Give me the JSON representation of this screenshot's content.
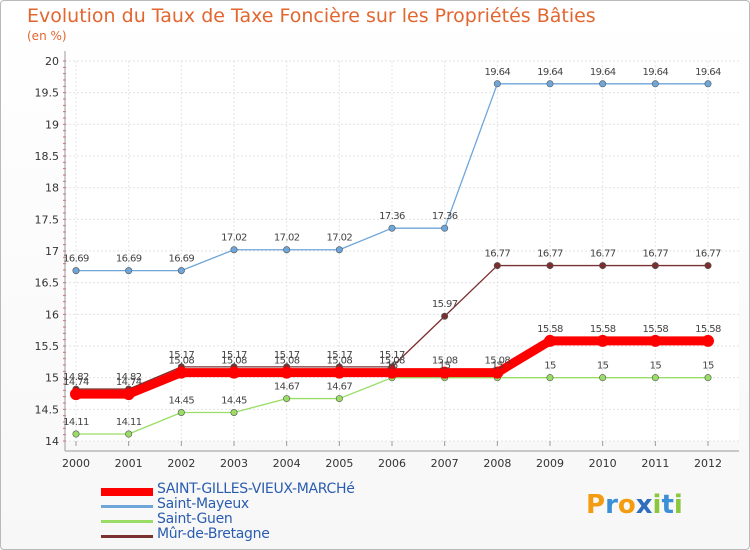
{
  "title": "Evolution du Taux de Taxe Foncière sur les Propriétés Bâties",
  "subtitle": "(en %)",
  "chart_data": {
    "type": "line",
    "x": [
      "2000",
      "2001",
      "2002",
      "2003",
      "2004",
      "2005",
      "2006",
      "2007",
      "2008",
      "2009",
      "2010",
      "2011",
      "2012"
    ],
    "ylim": [
      14,
      20
    ],
    "yticks": [
      "14",
      "14.5",
      "15",
      "15.5",
      "16",
      "16.5",
      "17",
      "17.5",
      "18",
      "18.5",
      "19",
      "19.5",
      "20"
    ],
    "grid": true,
    "legend_position": "bottom",
    "series": [
      {
        "name": "SAINT-GILLES-VIEUX-MARCHé",
        "color": "#ff0000",
        "values": [
          14.74,
          14.74,
          15.08,
          15.08,
          15.08,
          15.08,
          15.08,
          15.08,
          15.08,
          15.58,
          15.58,
          15.58,
          15.58
        ],
        "labels": [
          "14.74",
          "14.74",
          "15.08",
          "15.08",
          "15.08",
          "15.08",
          "15.08",
          "15.08",
          "15.08",
          "15.58",
          "15.58",
          "15.58",
          "15.58"
        ]
      },
      {
        "name": "Saint-Mayeux",
        "color": "#6ea6d9",
        "values": [
          16.69,
          16.69,
          16.69,
          17.02,
          17.02,
          17.02,
          17.36,
          17.36,
          19.64,
          19.64,
          19.64,
          19.64,
          19.64
        ],
        "labels": [
          "16.69",
          "16.69",
          "16.69",
          "17.02",
          "17.02",
          "17.02",
          "17.36",
          "17.36",
          "19.64",
          "19.64",
          "19.64",
          "19.64",
          "19.64"
        ]
      },
      {
        "name": "Saint-Guen",
        "color": "#99dd66",
        "values": [
          14.11,
          14.11,
          14.45,
          14.45,
          14.67,
          14.67,
          15,
          15,
          15,
          15,
          15,
          15,
          15
        ],
        "labels": [
          "14.11",
          "14.11",
          "14.45",
          "14.45",
          "14.67",
          "14.67",
          "15",
          "15",
          "15",
          "15",
          "15",
          "15",
          "15"
        ]
      },
      {
        "name": "Mûr-de-Bretagne",
        "color": "#7a3030",
        "values": [
          14.82,
          14.82,
          15.17,
          15.17,
          15.17,
          15.17,
          15.17,
          15.97,
          16.77,
          16.77,
          16.77,
          16.77,
          16.77
        ],
        "labels": [
          "14.82",
          "14.82",
          "15.17",
          "15.17",
          "15.17",
          "15.17",
          "15.17",
          "15.97",
          "16.77",
          "16.77",
          "16.77",
          "16.77",
          "16.77"
        ]
      }
    ]
  },
  "logo": {
    "text": "Proxiti",
    "colors": [
      "#f39c12",
      "#3a8fd6",
      "#f39c12",
      "#2f6ebd",
      "#8cc63f",
      "#3a8fd6",
      "#8cc63f"
    ]
  }
}
